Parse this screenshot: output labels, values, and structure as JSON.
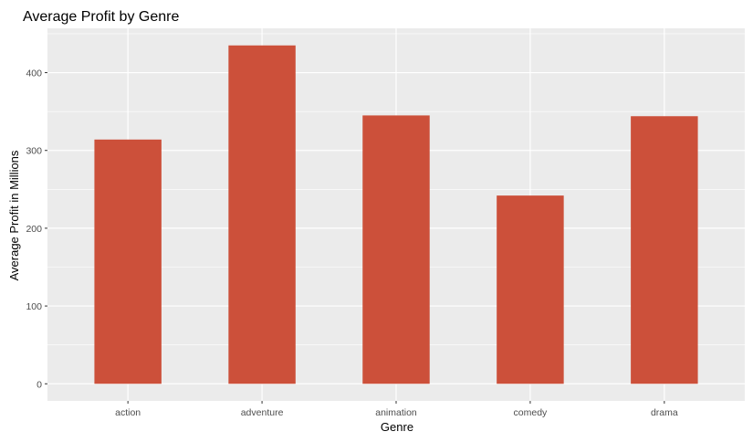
{
  "chart_data": {
    "type": "bar",
    "title": "Average Profit by Genre",
    "xlabel": "Genre",
    "ylabel": "Average Profit in Millions",
    "categories": [
      "action",
      "adventure",
      "animation",
      "comedy",
      "drama"
    ],
    "values": [
      314,
      435,
      345,
      242,
      344
    ],
    "ylim": [
      -22,
      457
    ],
    "yticks": [
      0,
      100,
      200,
      300,
      400
    ],
    "ytick_labels": [
      "0",
      "100",
      "200",
      "300",
      "400"
    ],
    "grid": true,
    "legend": "none",
    "colors": {
      "bar": "#cc503a",
      "panel_background": "#ebebeb",
      "grid_major": "#ffffff",
      "tick_label": "#4d4d4d"
    }
  }
}
